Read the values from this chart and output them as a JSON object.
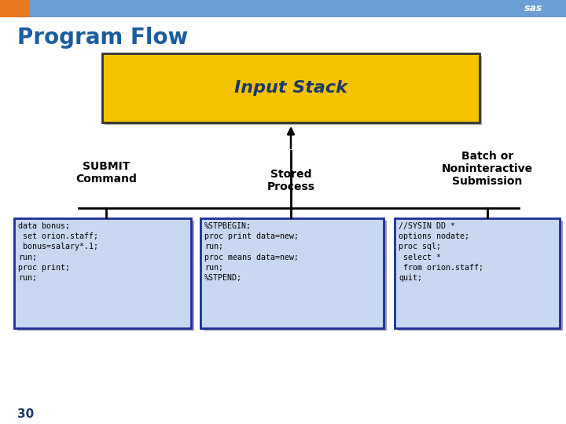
{
  "title": "Program Flow",
  "title_color": "#1a5c9e",
  "title_fontsize": 20,
  "title_weight": "bold",
  "bg_color": "#ffffff",
  "header_bar_color": "#6b9fd4",
  "header_orange_color": "#e87722",
  "input_stack_label": "Input Stack",
  "input_stack_bg": "#f5c200",
  "input_stack_border": "#333333",
  "input_stack_text_color": "#1a3a6b",
  "input_stack_fontsize": 16,
  "input_stack_fontstyle": "italic",
  "input_stack_fontweight": "bold",
  "code_box_bg": "#c8d8f0",
  "code_box_border": "#1a2e9c",
  "code_box_shadow": "#9999aa",
  "label_fontsize": 9,
  "label_color": "#000000",
  "code_fontsize": 7.2,
  "code_color": "#000000",
  "submit_label": "SUBMIT\nCommand",
  "stored_label": "Stored\nProcess",
  "batch_label": "Batch or\nNoninteractive\nSubmission",
  "submit_code": "data bonus;\n set orion.staff;\n bonus=salary*.1;\nrun;\nproc print;\nrun;",
  "stored_code": "%STPBEGIN;\nproc print data=new;\nrun;\nproc means data=new;\nrun;\n%STPEND;",
  "batch_code": "//SYSIN DD *\noptions nodate;\nproc sql;\n select *\n from orion.staff;\nquit;",
  "page_number": "30",
  "sas_text": "sas"
}
